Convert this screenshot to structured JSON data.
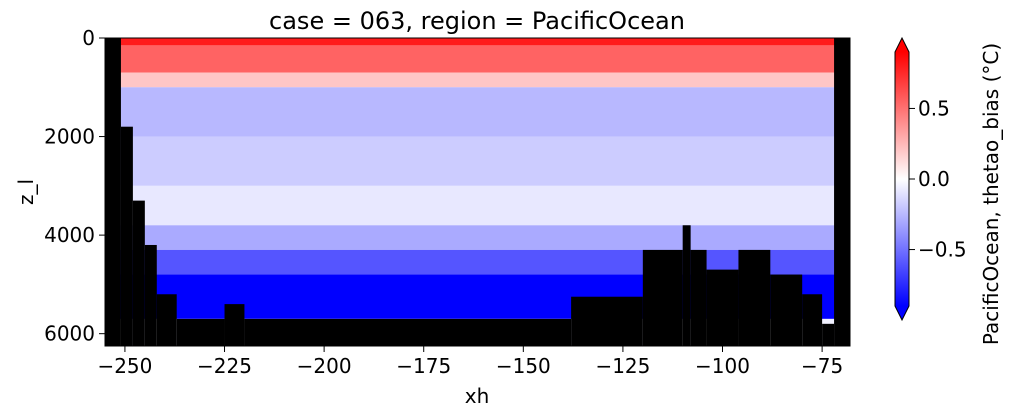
{
  "chart_data": {
    "type": "heatmap",
    "title": "case = 063, region = PacificOcean",
    "xlabel": "xh",
    "ylabel": "z_l",
    "xlim": [
      -255,
      -68
    ],
    "ylim": [
      6250,
      0
    ],
    "x_ticks": [
      -250,
      -225,
      -200,
      -175,
      -150,
      -125,
      -100,
      -75
    ],
    "x_tick_labels": [
      "−250",
      "−225",
      "−200",
      "−175",
      "−150",
      "−125",
      "−100",
      "−75"
    ],
    "y_ticks": [
      0,
      2000,
      4000,
      6000
    ],
    "y_tick_labels": [
      "0",
      "2000",
      "4000",
      "6000"
    ],
    "colorbar": {
      "label": "PacificOcean, thetao_bias (°C)",
      "colormap": "bwr",
      "vmin": -0.9,
      "vmax": 0.9,
      "extend": "both",
      "ticks": [
        -0.5,
        0.0,
        0.5
      ],
      "tick_labels": [
        "−0.5",
        "0.0",
        "0.5"
      ]
    },
    "mask_color": "#000000",
    "depth_layers": [
      {
        "z": [
          0,
          150
        ],
        "bias": 0.8
      },
      {
        "z": [
          150,
          700
        ],
        "bias": 0.55
      },
      {
        "z": [
          700,
          1000
        ],
        "bias": 0.2
      },
      {
        "z": [
          1000,
          2000
        ],
        "bias": -0.25
      },
      {
        "z": [
          2000,
          3000
        ],
        "bias": -0.18
      },
      {
        "z": [
          3000,
          3800
        ],
        "bias": -0.08
      },
      {
        "z": [
          3800,
          4300
        ],
        "bias": -0.3
      },
      {
        "z": [
          4300,
          4800
        ],
        "bias": -0.6
      },
      {
        "z": [
          4800,
          5700
        ],
        "bias": -0.9
      },
      {
        "z": [
          5700,
          6250
        ],
        "bias": -0.05
      }
    ],
    "bathymetry": [
      {
        "x": [
          -255,
          -251
        ],
        "floor": 0
      },
      {
        "x": [
          -251,
          -248
        ],
        "floor": 1800
      },
      {
        "x": [
          -248,
          -245
        ],
        "floor": 3300
      },
      {
        "x": [
          -245,
          -242
        ],
        "floor": 4200
      },
      {
        "x": [
          -242,
          -237
        ],
        "floor": 5200
      },
      {
        "x": [
          -237,
          -225
        ],
        "floor": 5700
      },
      {
        "x": [
          -225,
          -220
        ],
        "floor": 5400
      },
      {
        "x": [
          -220,
          -138
        ],
        "floor": 5700
      },
      {
        "x": [
          -138,
          -120
        ],
        "floor": 5250
      },
      {
        "x": [
          -120,
          -110
        ],
        "floor": 4300
      },
      {
        "x": [
          -110,
          -108
        ],
        "floor": 3800
      },
      {
        "x": [
          -108,
          -104
        ],
        "floor": 4300
      },
      {
        "x": [
          -104,
          -96
        ],
        "floor": 4700
      },
      {
        "x": [
          -96,
          -88
        ],
        "floor": 4300
      },
      {
        "x": [
          -88,
          -80
        ],
        "floor": 4800
      },
      {
        "x": [
          -80,
          -75
        ],
        "floor": 5200
      },
      {
        "x": [
          -75,
          -72
        ],
        "floor": 5800
      },
      {
        "x": [
          -72,
          -68
        ],
        "floor": 0
      }
    ]
  }
}
